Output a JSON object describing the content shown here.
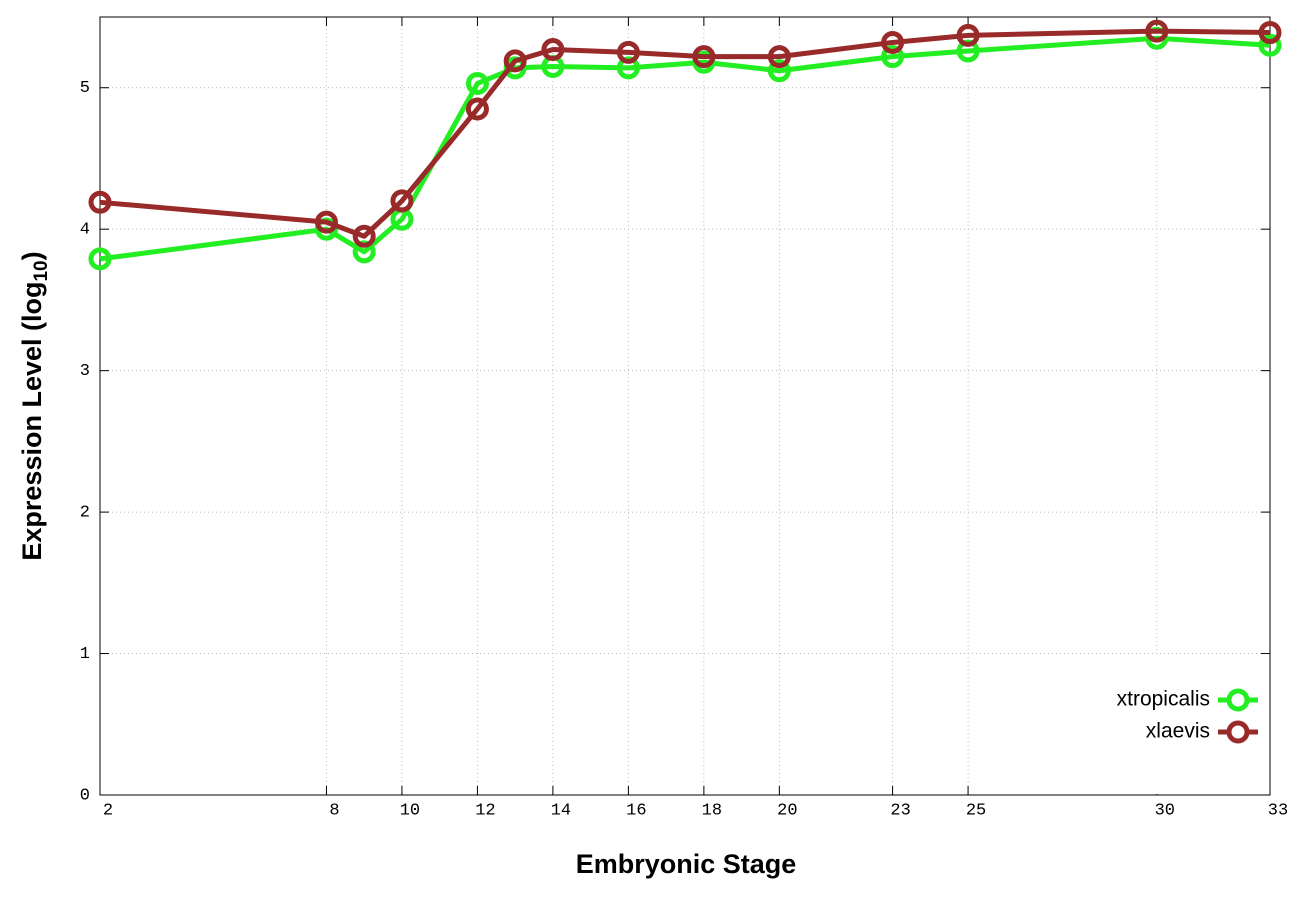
{
  "chart_data": {
    "type": "line",
    "x_label": "Embryonic Stage",
    "y_label_parts": [
      "Expression Level (log",
      "10",
      ")"
    ],
    "x": [
      2,
      8,
      9,
      10,
      12,
      13,
      14,
      16,
      18,
      20,
      23,
      25,
      30,
      33
    ],
    "series": [
      {
        "name": "xtropicalis",
        "color": "#22ee22",
        "values": [
          3.79,
          4.0,
          3.84,
          4.07,
          5.03,
          5.14,
          5.15,
          5.14,
          5.18,
          5.12,
          5.22,
          5.26,
          5.35,
          5.3
        ]
      },
      {
        "name": "xlaevis",
        "color": "#992a2a",
        "values": [
          4.19,
          4.05,
          3.95,
          4.2,
          4.85,
          5.19,
          5.27,
          5.25,
          5.22,
          5.22,
          5.32,
          5.37,
          5.4,
          5.39
        ]
      }
    ],
    "xlim": [
      2,
      33
    ],
    "ylim": [
      0,
      5.5
    ],
    "xticks": [
      2,
      8,
      10,
      12,
      14,
      16,
      18,
      20,
      23,
      25,
      30,
      33
    ],
    "yticks": [
      0,
      1,
      2,
      3,
      4,
      5
    ],
    "grid": true,
    "legend": "bottom-right"
  }
}
